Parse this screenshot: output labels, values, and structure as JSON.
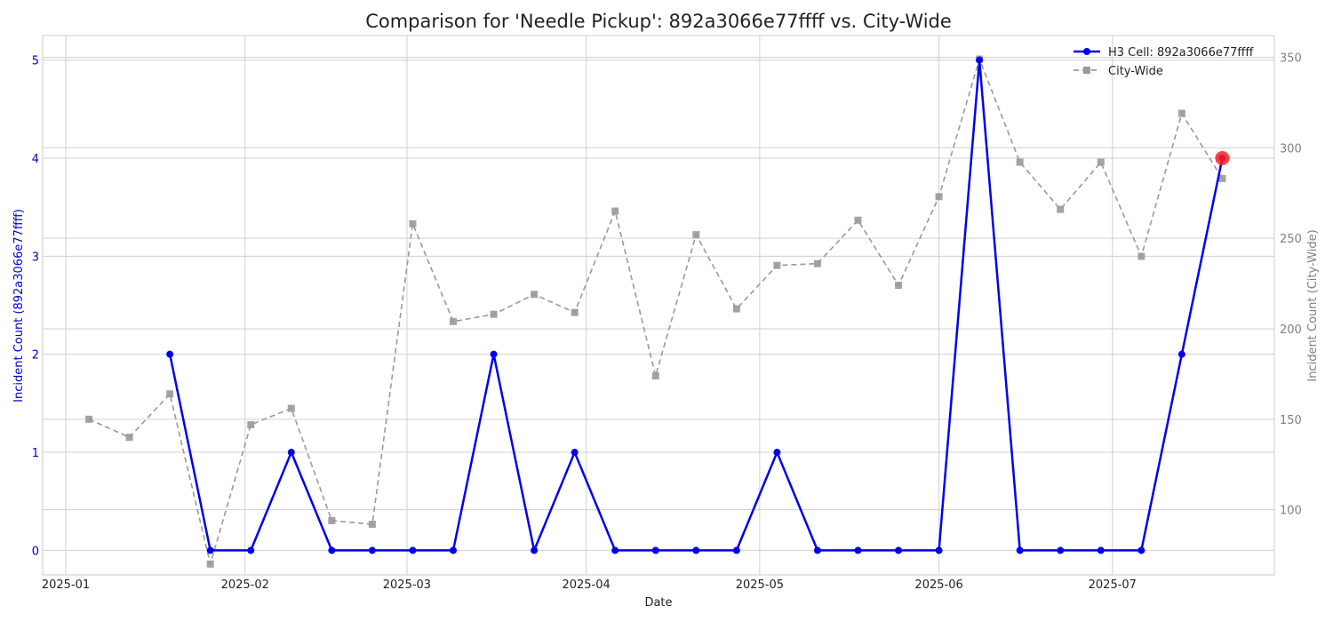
{
  "chart_data": {
    "type": "line",
    "title": "Comparison for 'Needle Pickup': 892a3066e77ffff vs. City-Wide",
    "xlabel": "Date",
    "ylabel_left": "Incident Count (892a3066e77ffff)",
    "ylabel_right": "Incident Count (City-Wide)",
    "x_ticks": [
      "2025-01",
      "2025-02",
      "2025-03",
      "2025-04",
      "2025-05",
      "2025-06",
      "2025-07"
    ],
    "y_left_ticks": [
      "0",
      "1",
      "2",
      "3",
      "4",
      "5"
    ],
    "y_right_ticks": [
      "100",
      "150",
      "200",
      "250",
      "300",
      "350"
    ],
    "ylim_left": [
      -0.25,
      5.25
    ],
    "ylim_right": [
      64,
      362
    ],
    "xlim": [
      "2024-12-28",
      "2025-07-29"
    ],
    "grid": true,
    "legend_position": "top-right",
    "colors": {
      "cell": "#0000ee",
      "city": "#999999",
      "highlight": "#ff2020",
      "left_axis_text": "#0000cc",
      "right_axis_text": "#808080"
    },
    "series": [
      {
        "name": "H3 Cell: 892a3066e77ffff",
        "axis": "left",
        "marker": "circle",
        "line": "solid",
        "points": [
          [
            "2025-01-19",
            2
          ],
          [
            "2025-01-26",
            0
          ],
          [
            "2025-02-02",
            0
          ],
          [
            "2025-02-09",
            1
          ],
          [
            "2025-02-16",
            0
          ],
          [
            "2025-02-23",
            0
          ],
          [
            "2025-03-02",
            0
          ],
          [
            "2025-03-09",
            0
          ],
          [
            "2025-03-16",
            2
          ],
          [
            "2025-03-23",
            0
          ],
          [
            "2025-03-30",
            1
          ],
          [
            "2025-04-06",
            0
          ],
          [
            "2025-04-13",
            0
          ],
          [
            "2025-04-20",
            0
          ],
          [
            "2025-04-27",
            0
          ],
          [
            "2025-05-04",
            1
          ],
          [
            "2025-05-11",
            0
          ],
          [
            "2025-05-18",
            0
          ],
          [
            "2025-05-25",
            0
          ],
          [
            "2025-06-01",
            0
          ],
          [
            "2025-06-08",
            5
          ],
          [
            "2025-06-15",
            0
          ],
          [
            "2025-06-22",
            0
          ],
          [
            "2025-06-29",
            0
          ],
          [
            "2025-07-06",
            0
          ],
          [
            "2025-07-13",
            2
          ],
          [
            "2025-07-20",
            4
          ]
        ]
      },
      {
        "name": "City-Wide",
        "axis": "right",
        "marker": "square",
        "line": "dashed",
        "points": [
          [
            "2025-01-05",
            150
          ],
          [
            "2025-01-12",
            140
          ],
          [
            "2025-01-19",
            164
          ],
          [
            "2025-01-26",
            70
          ],
          [
            "2025-02-02",
            147
          ],
          [
            "2025-02-09",
            156
          ],
          [
            "2025-02-16",
            94
          ],
          [
            "2025-02-23",
            92
          ],
          [
            "2025-03-02",
            258
          ],
          [
            "2025-03-09",
            204
          ],
          [
            "2025-03-16",
            208
          ],
          [
            "2025-03-23",
            219
          ],
          [
            "2025-03-30",
            209
          ],
          [
            "2025-04-06",
            265
          ],
          [
            "2025-04-13",
            174
          ],
          [
            "2025-04-20",
            252
          ],
          [
            "2025-04-27",
            211
          ],
          [
            "2025-05-04",
            235
          ],
          [
            "2025-05-11",
            236
          ],
          [
            "2025-05-18",
            260
          ],
          [
            "2025-05-25",
            224
          ],
          [
            "2025-06-01",
            273
          ],
          [
            "2025-06-08",
            349
          ],
          [
            "2025-06-15",
            292
          ],
          [
            "2025-06-22",
            266
          ],
          [
            "2025-06-29",
            292
          ],
          [
            "2025-07-06",
            240
          ],
          [
            "2025-07-13",
            319
          ],
          [
            "2025-07-20",
            283
          ]
        ]
      }
    ],
    "highlight_point": {
      "series": "H3 Cell: 892a3066e77ffff",
      "x": "2025-07-20",
      "y": 4
    }
  }
}
